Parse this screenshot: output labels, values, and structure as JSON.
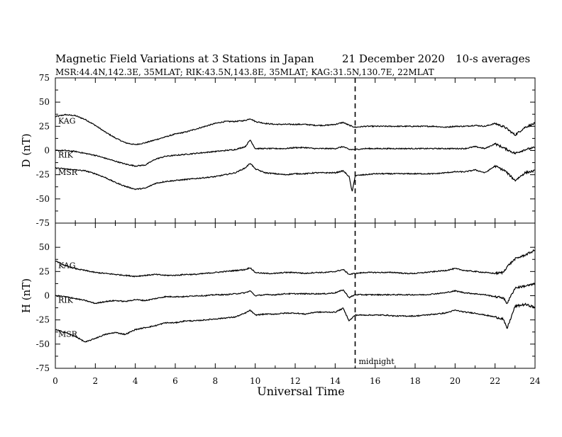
{
  "chart_data": {
    "type": "line",
    "title": "Magnetic Field Variations at 3 Stations in Japan",
    "date": "21 December 2020",
    "averaging": "10-s averages",
    "subtitle": "MSR:44.4N,142.3E, 35MLAT;  RIK:43.5N,143.8E, 35MLAT;  KAG:31.5N,130.7E, 22MLAT",
    "xlabel": "Universal Time",
    "xlim": [
      0,
      24
    ],
    "xticks": [
      "0",
      "2",
      "4",
      "6",
      "8",
      "10",
      "12",
      "14",
      "16",
      "18",
      "20",
      "22",
      "24"
    ],
    "midnight_marker": {
      "x": 15,
      "label": "midnight"
    },
    "panels": [
      {
        "ylabel": "D (nT)",
        "ylim": [
          -75,
          75
        ],
        "yticks": [
          "75",
          "50",
          "25",
          "0",
          "-25",
          "-50",
          "-75"
        ],
        "series": [
          {
            "name": "KAG",
            "x": [
              0,
              0.5,
              1,
              1.5,
              2,
              2.5,
              3,
              3.5,
              4,
              4.5,
              5,
              5.5,
              6,
              6.5,
              7,
              7.5,
              8,
              8.5,
              9,
              9.5,
              9.75,
              10,
              10.5,
              11,
              11.5,
              12,
              12.5,
              13,
              13.5,
              14,
              14.4,
              14.7,
              15,
              15.5,
              16,
              16.5,
              17,
              17.5,
              18,
              18.5,
              19,
              19.5,
              20,
              20.5,
              21,
              21.5,
              22,
              22.5,
              23,
              23.5,
              24
            ],
            "values": [
              35,
              37,
              36,
              32,
              26,
              19,
              13,
              8,
              6,
              8,
              11,
              14,
              17,
              19,
              22,
              25,
              28,
              30,
              30,
              31,
              33,
              30,
              28,
              27,
              27,
              27,
              27,
              26,
              26,
              27,
              29,
              26,
              24,
              25,
              25,
              25,
              25,
              25,
              25,
              25,
              25,
              24,
              25,
              25,
              26,
              25,
              28,
              24,
              16,
              24,
              28
            ]
          },
          {
            "name": "RIK",
            "x": [
              0,
              0.5,
              1,
              1.5,
              2,
              2.5,
              3,
              3.5,
              4,
              4.5,
              5,
              5.5,
              6,
              6.5,
              7,
              7.5,
              8,
              8.5,
              9,
              9.5,
              9.75,
              10,
              10.5,
              11,
              11.5,
              12,
              12.5,
              13,
              13.5,
              14,
              14.4,
              14.7,
              15,
              15.5,
              16,
              16.5,
              17,
              17.5,
              18,
              18.5,
              19,
              19.5,
              20,
              20.5,
              21,
              21.5,
              22,
              22.5,
              23,
              23.5,
              24
            ],
            "values": [
              0,
              0,
              -1,
              -3,
              -5,
              -8,
              -11,
              -14,
              -16,
              -15,
              -9,
              -6,
              -5,
              -4,
              -3,
              -2,
              -1,
              0,
              1,
              4,
              11,
              2,
              2,
              2,
              2,
              3,
              3,
              2,
              2,
              2,
              4,
              1,
              1,
              2,
              2,
              2,
              2,
              2,
              2,
              2,
              2,
              2,
              2,
              2,
              4,
              2,
              7,
              2,
              -3,
              1,
              3
            ]
          },
          {
            "name": "MSR",
            "x": [
              0,
              0.5,
              1,
              1.5,
              2,
              2.5,
              3,
              3.5,
              4,
              4.5,
              5,
              5.5,
              6,
              6.5,
              7,
              7.5,
              8,
              8.5,
              9,
              9.5,
              9.75,
              10,
              10.5,
              11,
              11.5,
              12,
              12.5,
              13,
              13.5,
              14,
              14.4,
              14.7,
              14.85,
              15,
              15.5,
              16,
              16.5,
              17,
              17.5,
              18,
              18.5,
              19,
              19.5,
              20,
              20.5,
              21,
              21.5,
              22,
              22.5,
              23,
              23.5,
              24
            ],
            "values": [
              -18,
              -19,
              -20,
              -21,
              -24,
              -28,
              -33,
              -37,
              -40,
              -39,
              -34,
              -32,
              -31,
              -30,
              -29,
              -28,
              -27,
              -25,
              -23,
              -18,
              -13,
              -19,
              -23,
              -24,
              -25,
              -24,
              -24,
              -23,
              -23,
              -23,
              -21,
              -27,
              -43,
              -26,
              -25,
              -24,
              -24,
              -24,
              -24,
              -24,
              -24,
              -24,
              -23,
              -22,
              -22,
              -20,
              -23,
              -16,
              -21,
              -31,
              -23,
              -21
            ]
          }
        ]
      },
      {
        "ylabel": "H (nT)",
        "ylim": [
          -75,
          75
        ],
        "yticks": [
          "50",
          "25",
          "0",
          "-25",
          "-50",
          "-75"
        ],
        "series": [
          {
            "name": "KAG",
            "x": [
              0,
              0.5,
              1,
              1.5,
              2,
              2.5,
              3,
              3.5,
              4,
              4.5,
              5,
              5.5,
              6,
              6.5,
              7,
              7.5,
              8,
              8.5,
              9,
              9.5,
              9.75,
              10,
              10.5,
              11,
              11.5,
              12,
              12.5,
              13,
              13.5,
              14,
              14.4,
              14.7,
              15,
              15.5,
              16,
              16.5,
              17,
              17.5,
              18,
              18.5,
              19,
              19.5,
              20,
              20.5,
              21,
              21.5,
              22,
              22.4,
              22.6,
              23,
              23.5,
              24
            ],
            "values": [
              36,
              31,
              28,
              26,
              24,
              23,
              22,
              21,
              20,
              21,
              22,
              21,
              21,
              22,
              22,
              23,
              24,
              25,
              26,
              27,
              29,
              24,
              23,
              23,
              24,
              24,
              23,
              24,
              24,
              25,
              27,
              22,
              23,
              24,
              24,
              24,
              24,
              23,
              23,
              24,
              25,
              26,
              28,
              26,
              25,
              24,
              23,
              24,
              30,
              38,
              42,
              47
            ]
          },
          {
            "name": "RIK",
            "x": [
              0,
              0.5,
              1,
              1.5,
              2,
              2.5,
              3,
              3.5,
              4,
              4.5,
              5,
              5.5,
              6,
              6.5,
              7,
              7.5,
              8,
              8.5,
              9,
              9.5,
              9.75,
              10,
              10.5,
              11,
              11.5,
              12,
              12.5,
              13,
              13.5,
              14,
              14.4,
              14.7,
              15,
              15.5,
              16,
              16.5,
              17,
              17.5,
              18,
              18.5,
              19,
              19.5,
              20,
              20.5,
              21,
              21.5,
              22,
              22.4,
              22.6,
              23,
              23.5,
              24
            ],
            "values": [
              0,
              -1,
              -3,
              -5,
              -8,
              -6,
              -5,
              -6,
              -4,
              -5,
              -3,
              -1,
              -1,
              -1,
              0,
              0,
              1,
              1,
              2,
              3,
              5,
              0,
              1,
              1,
              2,
              2,
              2,
              2,
              2,
              3,
              6,
              -2,
              1,
              1,
              1,
              1,
              1,
              1,
              1,
              1,
              2,
              3,
              5,
              3,
              2,
              1,
              -1,
              -2,
              -8,
              8,
              10,
              12
            ]
          },
          {
            "name": "MSR",
            "x": [
              0,
              0.5,
              1,
              1.5,
              2,
              2.5,
              3,
              3.5,
              4,
              4.5,
              5,
              5.5,
              6,
              6.5,
              7,
              7.5,
              8,
              8.5,
              9,
              9.5,
              9.75,
              10,
              10.5,
              11,
              11.5,
              12,
              12.5,
              13,
              13.5,
              14,
              14.4,
              14.7,
              15,
              15.5,
              16,
              16.5,
              17,
              17.5,
              18,
              18.5,
              19,
              19.5,
              20,
              20.5,
              21,
              21.5,
              22,
              22.4,
              22.6,
              23,
              23.5,
              24
            ],
            "values": [
              -35,
              -38,
              -42,
              -48,
              -44,
              -40,
              -38,
              -40,
              -35,
              -33,
              -31,
              -28,
              -28,
              -26,
              -26,
              -25,
              -24,
              -23,
              -22,
              -18,
              -15,
              -20,
              -19,
              -19,
              -18,
              -18,
              -19,
              -17,
              -17,
              -17,
              -13,
              -26,
              -20,
              -20,
              -20,
              -20,
              -21,
              -21,
              -21,
              -20,
              -19,
              -18,
              -15,
              -17,
              -18,
              -20,
              -22,
              -24,
              -34,
              -11,
              -9,
              -12
            ]
          }
        ]
      }
    ]
  }
}
